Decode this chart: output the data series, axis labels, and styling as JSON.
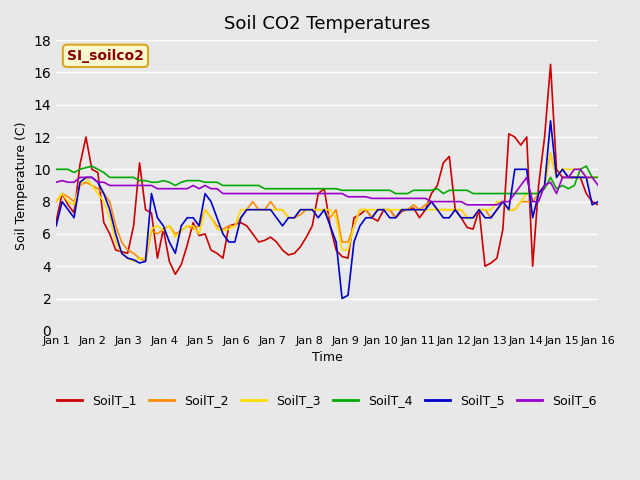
{
  "title": "Soil CO2 Temperatures",
  "xlabel": "Time",
  "ylabel": "Soil Temperature (C)",
  "ylim": [
    0,
    18
  ],
  "xlim": [
    0,
    15
  ],
  "annotation_text": "SI_soilco2",
  "annotation_color": "#8B0000",
  "annotation_bg": "#FFFACD",
  "annotation_border": "#DAA520",
  "x_tick_labels": [
    "Jan 1",
    "Jan 2",
    "Jan 3",
    "Jan 4",
    "Jan 5",
    "Jan 6",
    "Jan 7",
    "Jan 8",
    "Jan 9",
    "Jan 10",
    "Jan 11",
    "Jan 12",
    "Jan 13",
    "Jan 14",
    "Jan 15",
    "Jan 16"
  ],
  "series": {
    "SoilT_1": {
      "color": "#CC0000",
      "data": [
        6.8,
        8.5,
        7.8,
        7.3,
        10.3,
        12.0,
        10.0,
        9.8,
        6.7,
        6.0,
        5.0,
        4.9,
        4.8,
        6.5,
        10.4,
        7.5,
        7.3,
        4.5,
        6.3,
        4.3,
        3.5,
        4.1,
        5.3,
        6.7,
        5.9,
        6.0,
        5.0,
        4.8,
        4.5,
        6.5,
        6.6,
        6.7,
        6.5,
        6.0,
        5.5,
        5.6,
        5.8,
        5.5,
        5.0,
        4.7,
        4.8,
        5.2,
        5.8,
        6.5,
        8.5,
        8.8,
        6.5,
        5.0,
        4.6,
        4.5,
        7.0,
        7.2,
        7.5,
        7.0,
        6.8,
        7.5,
        7.5,
        7.0,
        7.4,
        7.5,
        7.6,
        7.0,
        7.5,
        8.5,
        9.0,
        10.4,
        10.8,
        7.5,
        7.0,
        6.4,
        6.3,
        7.5,
        4.0,
        4.2,
        4.5,
        6.3,
        12.2,
        12.0,
        11.5,
        12.0,
        4.0,
        9.0,
        12.0,
        16.5,
        10.0,
        9.5,
        9.5,
        9.5,
        9.5,
        8.5,
        8.0,
        7.8
      ]
    },
    "SoilT_2": {
      "color": "#FF8C00",
      "data": [
        8.0,
        8.5,
        8.3,
        8.0,
        9.0,
        9.2,
        9.0,
        8.8,
        8.5,
        8.0,
        6.5,
        5.5,
        5.0,
        4.8,
        4.5,
        4.3,
        6.2,
        6.0,
        6.3,
        6.5,
        6.0,
        6.2,
        6.5,
        6.3,
        6.5,
        7.5,
        7.0,
        6.5,
        6.3,
        6.5,
        6.5,
        7.0,
        7.5,
        8.0,
        7.5,
        7.5,
        8.0,
        7.5,
        7.5,
        7.0,
        7.0,
        7.2,
        7.5,
        7.5,
        7.5,
        7.5,
        7.0,
        7.5,
        5.5,
        5.5,
        6.5,
        7.5,
        7.5,
        7.0,
        7.5,
        7.5,
        7.5,
        7.0,
        7.5,
        7.5,
        7.8,
        7.5,
        7.8,
        8.0,
        7.5,
        7.5,
        7.5,
        7.5,
        7.5,
        7.0,
        7.0,
        7.5,
        7.5,
        7.0,
        7.5,
        8.0,
        7.5,
        7.5,
        8.0,
        8.0,
        8.0,
        8.5,
        9.0,
        11.0,
        9.5,
        10.0,
        9.5,
        9.5,
        9.5,
        9.5,
        9.5,
        9.5
      ]
    },
    "SoilT_3": {
      "color": "#FFDD00",
      "data": [
        8.0,
        8.5,
        8.0,
        7.8,
        9.0,
        9.5,
        9.0,
        8.5,
        8.0,
        7.0,
        5.5,
        4.8,
        4.5,
        4.3,
        4.5,
        4.5,
        6.3,
        6.5,
        6.2,
        6.5,
        5.8,
        6.2,
        6.5,
        6.5,
        6.0,
        7.5,
        7.0,
        6.3,
        6.2,
        6.3,
        6.5,
        7.5,
        7.5,
        7.5,
        7.5,
        7.5,
        7.5,
        7.5,
        7.5,
        7.0,
        7.0,
        7.5,
        7.5,
        7.5,
        7.5,
        7.5,
        7.5,
        7.0,
        5.0,
        5.0,
        6.5,
        7.5,
        7.5,
        7.5,
        7.5,
        7.5,
        7.5,
        7.5,
        7.5,
        7.5,
        7.5,
        7.5,
        7.5,
        7.5,
        7.5,
        7.5,
        7.5,
        7.5,
        7.5,
        7.0,
        7.0,
        7.5,
        7.5,
        7.5,
        8.0,
        8.0,
        7.5,
        7.5,
        8.0,
        8.5,
        8.5,
        8.5,
        9.0,
        11.0,
        9.5,
        10.0,
        10.0,
        10.0,
        10.0,
        9.5,
        9.5,
        9.5
      ]
    },
    "SoilT_4": {
      "color": "#00AA00",
      "data": [
        10.0,
        10.0,
        10.0,
        9.8,
        10.0,
        10.1,
        10.2,
        10.0,
        9.8,
        9.5,
        9.5,
        9.5,
        9.5,
        9.5,
        9.3,
        9.3,
        9.2,
        9.2,
        9.3,
        9.2,
        9.0,
        9.2,
        9.3,
        9.3,
        9.3,
        9.2,
        9.2,
        9.2,
        9.0,
        9.0,
        9.0,
        9.0,
        9.0,
        9.0,
        9.0,
        8.8,
        8.8,
        8.8,
        8.8,
        8.8,
        8.8,
        8.8,
        8.8,
        8.8,
        8.8,
        8.8,
        8.8,
        8.8,
        8.7,
        8.7,
        8.7,
        8.7,
        8.7,
        8.7,
        8.7,
        8.7,
        8.7,
        8.5,
        8.5,
        8.5,
        8.7,
        8.7,
        8.7,
        8.7,
        8.8,
        8.5,
        8.7,
        8.7,
        8.7,
        8.7,
        8.5,
        8.5,
        8.5,
        8.5,
        8.5,
        8.5,
        8.5,
        8.5,
        8.5,
        8.5,
        8.5,
        8.5,
        8.8,
        9.5,
        8.8,
        9.0,
        8.8,
        9.0,
        10.0,
        10.2,
        9.5,
        9.5
      ]
    },
    "SoilT_5": {
      "color": "#0000CC",
      "data": [
        6.5,
        8.0,
        7.5,
        7.0,
        9.2,
        9.5,
        9.5,
        9.2,
        8.5,
        7.5,
        6.0,
        4.8,
        4.5,
        4.4,
        4.2,
        4.3,
        8.5,
        7.0,
        6.5,
        5.5,
        4.8,
        6.5,
        7.0,
        7.0,
        6.5,
        8.5,
        8.0,
        7.0,
        6.0,
        5.5,
        5.5,
        7.0,
        7.5,
        7.5,
        7.5,
        7.5,
        7.5,
        7.0,
        6.5,
        7.0,
        7.0,
        7.5,
        7.5,
        7.5,
        7.0,
        7.5,
        6.5,
        5.5,
        2.0,
        2.2,
        5.5,
        6.5,
        7.0,
        7.0,
        7.5,
        7.5,
        7.0,
        7.0,
        7.5,
        7.5,
        7.5,
        7.5,
        7.5,
        8.0,
        7.5,
        7.0,
        7.0,
        7.5,
        7.0,
        7.0,
        7.0,
        7.5,
        7.0,
        7.0,
        7.5,
        8.0,
        7.5,
        10.0,
        10.0,
        10.0,
        7.0,
        8.5,
        9.0,
        13.0,
        9.5,
        10.0,
        9.5,
        9.5,
        9.5,
        9.5,
        7.8,
        8.0
      ]
    },
    "SoilT_6": {
      "color": "#9900CC",
      "data": [
        9.2,
        9.3,
        9.2,
        9.2,
        9.5,
        9.5,
        9.5,
        9.2,
        9.2,
        9.0,
        9.0,
        9.0,
        9.0,
        9.0,
        9.0,
        9.0,
        9.0,
        8.8,
        8.8,
        8.8,
        8.8,
        8.8,
        8.8,
        9.0,
        8.8,
        9.0,
        8.8,
        8.8,
        8.5,
        8.5,
        8.5,
        8.5,
        8.5,
        8.5,
        8.5,
        8.5,
        8.5,
        8.5,
        8.5,
        8.5,
        8.5,
        8.5,
        8.5,
        8.5,
        8.5,
        8.5,
        8.5,
        8.5,
        8.5,
        8.3,
        8.3,
        8.3,
        8.3,
        8.2,
        8.2,
        8.2,
        8.2,
        8.2,
        8.2,
        8.2,
        8.2,
        8.2,
        8.2,
        8.0,
        8.0,
        8.0,
        8.0,
        8.0,
        8.0,
        7.8,
        7.8,
        7.8,
        7.8,
        7.8,
        7.8,
        8.0,
        8.0,
        8.5,
        9.0,
        9.5,
        8.0,
        8.0,
        9.0,
        9.2,
        8.5,
        9.5,
        9.5,
        10.0,
        10.0,
        9.5,
        9.5,
        9.0
      ]
    }
  },
  "n_points": 92,
  "bg_color": "#E8E8E8",
  "plot_bg": "#E8E8E8",
  "grid_color": "#FFFFFF",
  "legend_entries": [
    "SoilT_1",
    "SoilT_2",
    "SoilT_3",
    "SoilT_4",
    "SoilT_5",
    "SoilT_6"
  ]
}
